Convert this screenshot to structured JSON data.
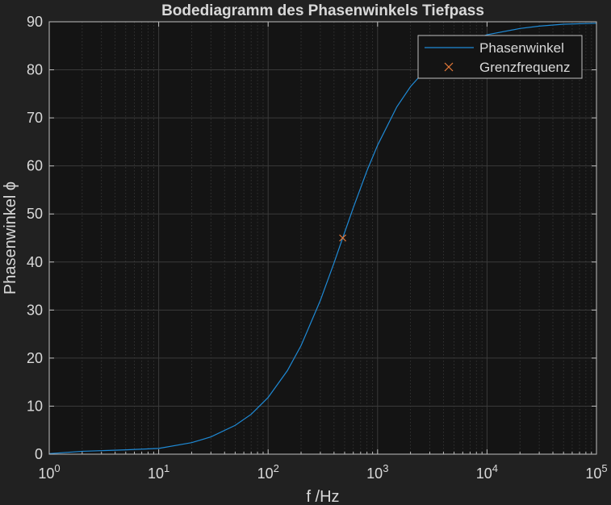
{
  "figure": {
    "background": "#212121",
    "axes_background": "#141414",
    "grid_color": "#3a3a3a",
    "text_color": "#d9d9d9"
  },
  "chart_data": {
    "type": "line",
    "title": "Bodediagramm des Phasenwinkels Tiefpass",
    "xlabel": "f /Hz",
    "ylabel": "Phasenwinkel ϕ",
    "xscale": "log",
    "xlim": [
      1,
      100000
    ],
    "ylim": [
      0,
      90
    ],
    "x_ticks": [
      {
        "value": 1,
        "base": "10",
        "exp": "0"
      },
      {
        "value": 10,
        "base": "10",
        "exp": "1"
      },
      {
        "value": 100,
        "base": "10",
        "exp": "2"
      },
      {
        "value": 1000,
        "base": "10",
        "exp": "3"
      },
      {
        "value": 10000,
        "base": "10",
        "exp": "4"
      },
      {
        "value": 100000,
        "base": "10",
        "exp": "5"
      }
    ],
    "y_ticks": [
      0,
      10,
      20,
      30,
      40,
      50,
      60,
      70,
      80,
      90
    ],
    "grid": true,
    "minor_grid": true,
    "legend_position": "top-right",
    "series": [
      {
        "name": "Phasenwinkel",
        "color": "#1f8ad6",
        "style": "line",
        "x": [
          1,
          2,
          5,
          10,
          20,
          30,
          50,
          70,
          100,
          150,
          200,
          300,
          400,
          480,
          600,
          800,
          1000,
          1500,
          2000,
          3000,
          5000,
          7000,
          10000,
          20000,
          30000,
          50000,
          100000
        ],
        "y": [
          0.12,
          0.6,
          0.9,
          1.2,
          2.4,
          3.6,
          6.0,
          8.3,
          11.8,
          17.4,
          22.6,
          32.0,
          39.8,
          45.0,
          51.3,
          59.0,
          64.3,
          72.3,
          76.5,
          81.0,
          84.6,
          86.1,
          87.3,
          88.6,
          89.1,
          89.5,
          89.7
        ]
      },
      {
        "name": "Grenzfrequenz",
        "color": "#e87b3a",
        "style": "marker-x",
        "x": [
          480
        ],
        "y": [
          45
        ]
      }
    ]
  }
}
